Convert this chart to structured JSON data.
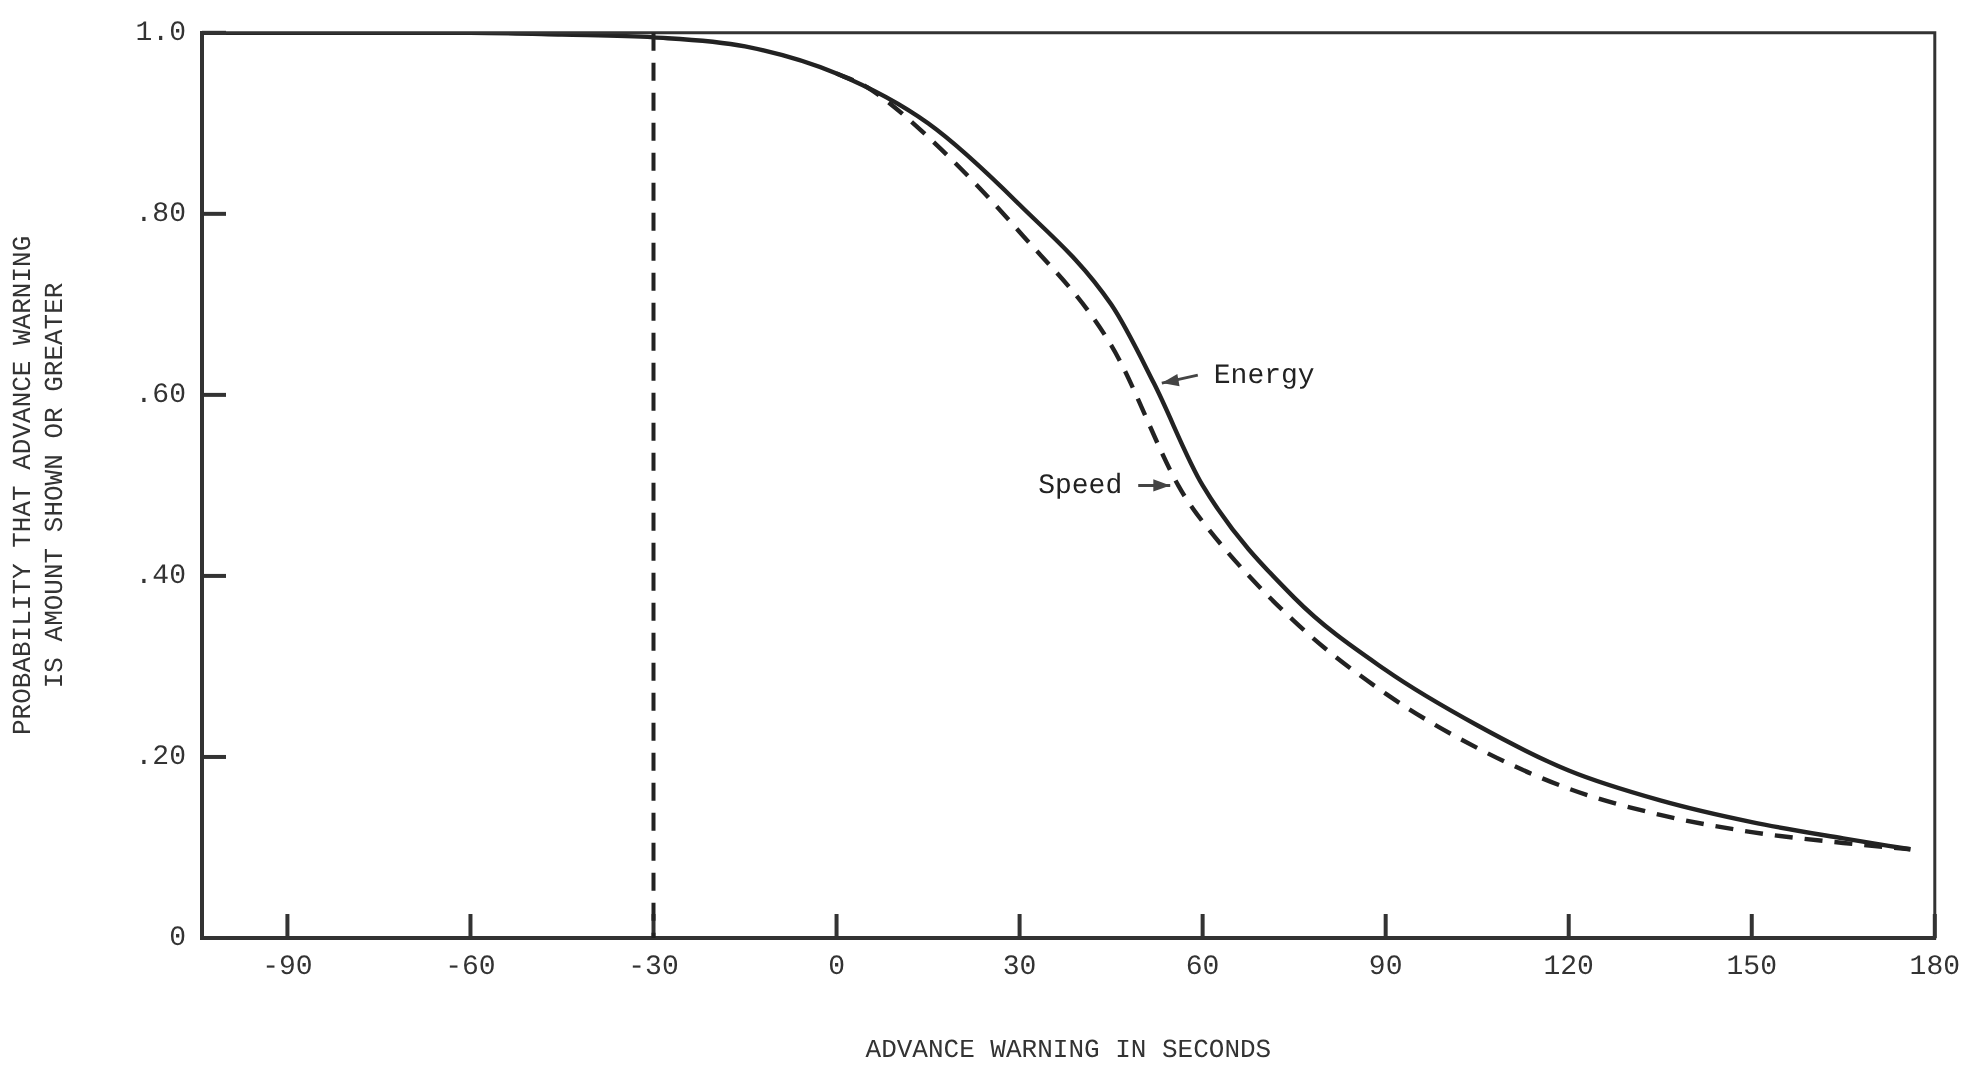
{
  "chart_data": {
    "type": "line",
    "xlabel": "ADVANCE WARNING IN SECONDS",
    "ylabel": "PROBABILITY THAT ADVANCE WARNING\nIS AMOUNT SHOWN OR GREATER",
    "xlim": [
      -104,
      180
    ],
    "xticks": [
      -90,
      -60,
      -30,
      0,
      30,
      60,
      90,
      120,
      150,
      180
    ],
    "ylim": [
      0,
      1
    ],
    "yticks": [
      {
        "value": 0,
        "label": "0"
      },
      {
        "value": 0.2,
        "label": ".20"
      },
      {
        "value": 0.4,
        "label": ".40"
      },
      {
        "value": 0.6,
        "label": ".60"
      },
      {
        "value": 0.8,
        "label": ".80"
      },
      {
        "value": 1,
        "label": "1.0"
      }
    ],
    "legend": false,
    "marker": "none",
    "series": [
      {
        "name": "Energy",
        "color": "#222222",
        "line_style": "solid",
        "x": [
          -104,
          -90,
          -60,
          -45,
          -30,
          -15,
          0,
          15,
          30,
          45,
          52,
          60,
          75,
          90,
          105,
          120,
          135,
          150,
          165,
          176
        ],
        "values": [
          1.0,
          1.0,
          1.0,
          0.998,
          0.995,
          0.985,
          0.955,
          0.9,
          0.81,
          0.7,
          0.613,
          0.5,
          0.376,
          0.296,
          0.235,
          0.185,
          0.152,
          0.128,
          0.11,
          0.098
        ]
      },
      {
        "name": "Speed",
        "color": "#222222",
        "line_style": "dashed",
        "x": [
          0,
          5,
          15,
          30,
          45,
          56,
          60,
          75,
          90,
          105,
          120,
          135,
          150,
          165,
          176
        ],
        "values": [
          0.955,
          0.94,
          0.885,
          0.78,
          0.655,
          0.5,
          0.46,
          0.35,
          0.27,
          0.21,
          0.165,
          0.136,
          0.117,
          0.105,
          0.098
        ]
      }
    ],
    "ref_lines": [
      {
        "axis": "x",
        "value": -30,
        "color": "#222222",
        "line_style": "dashed"
      }
    ]
  }
}
